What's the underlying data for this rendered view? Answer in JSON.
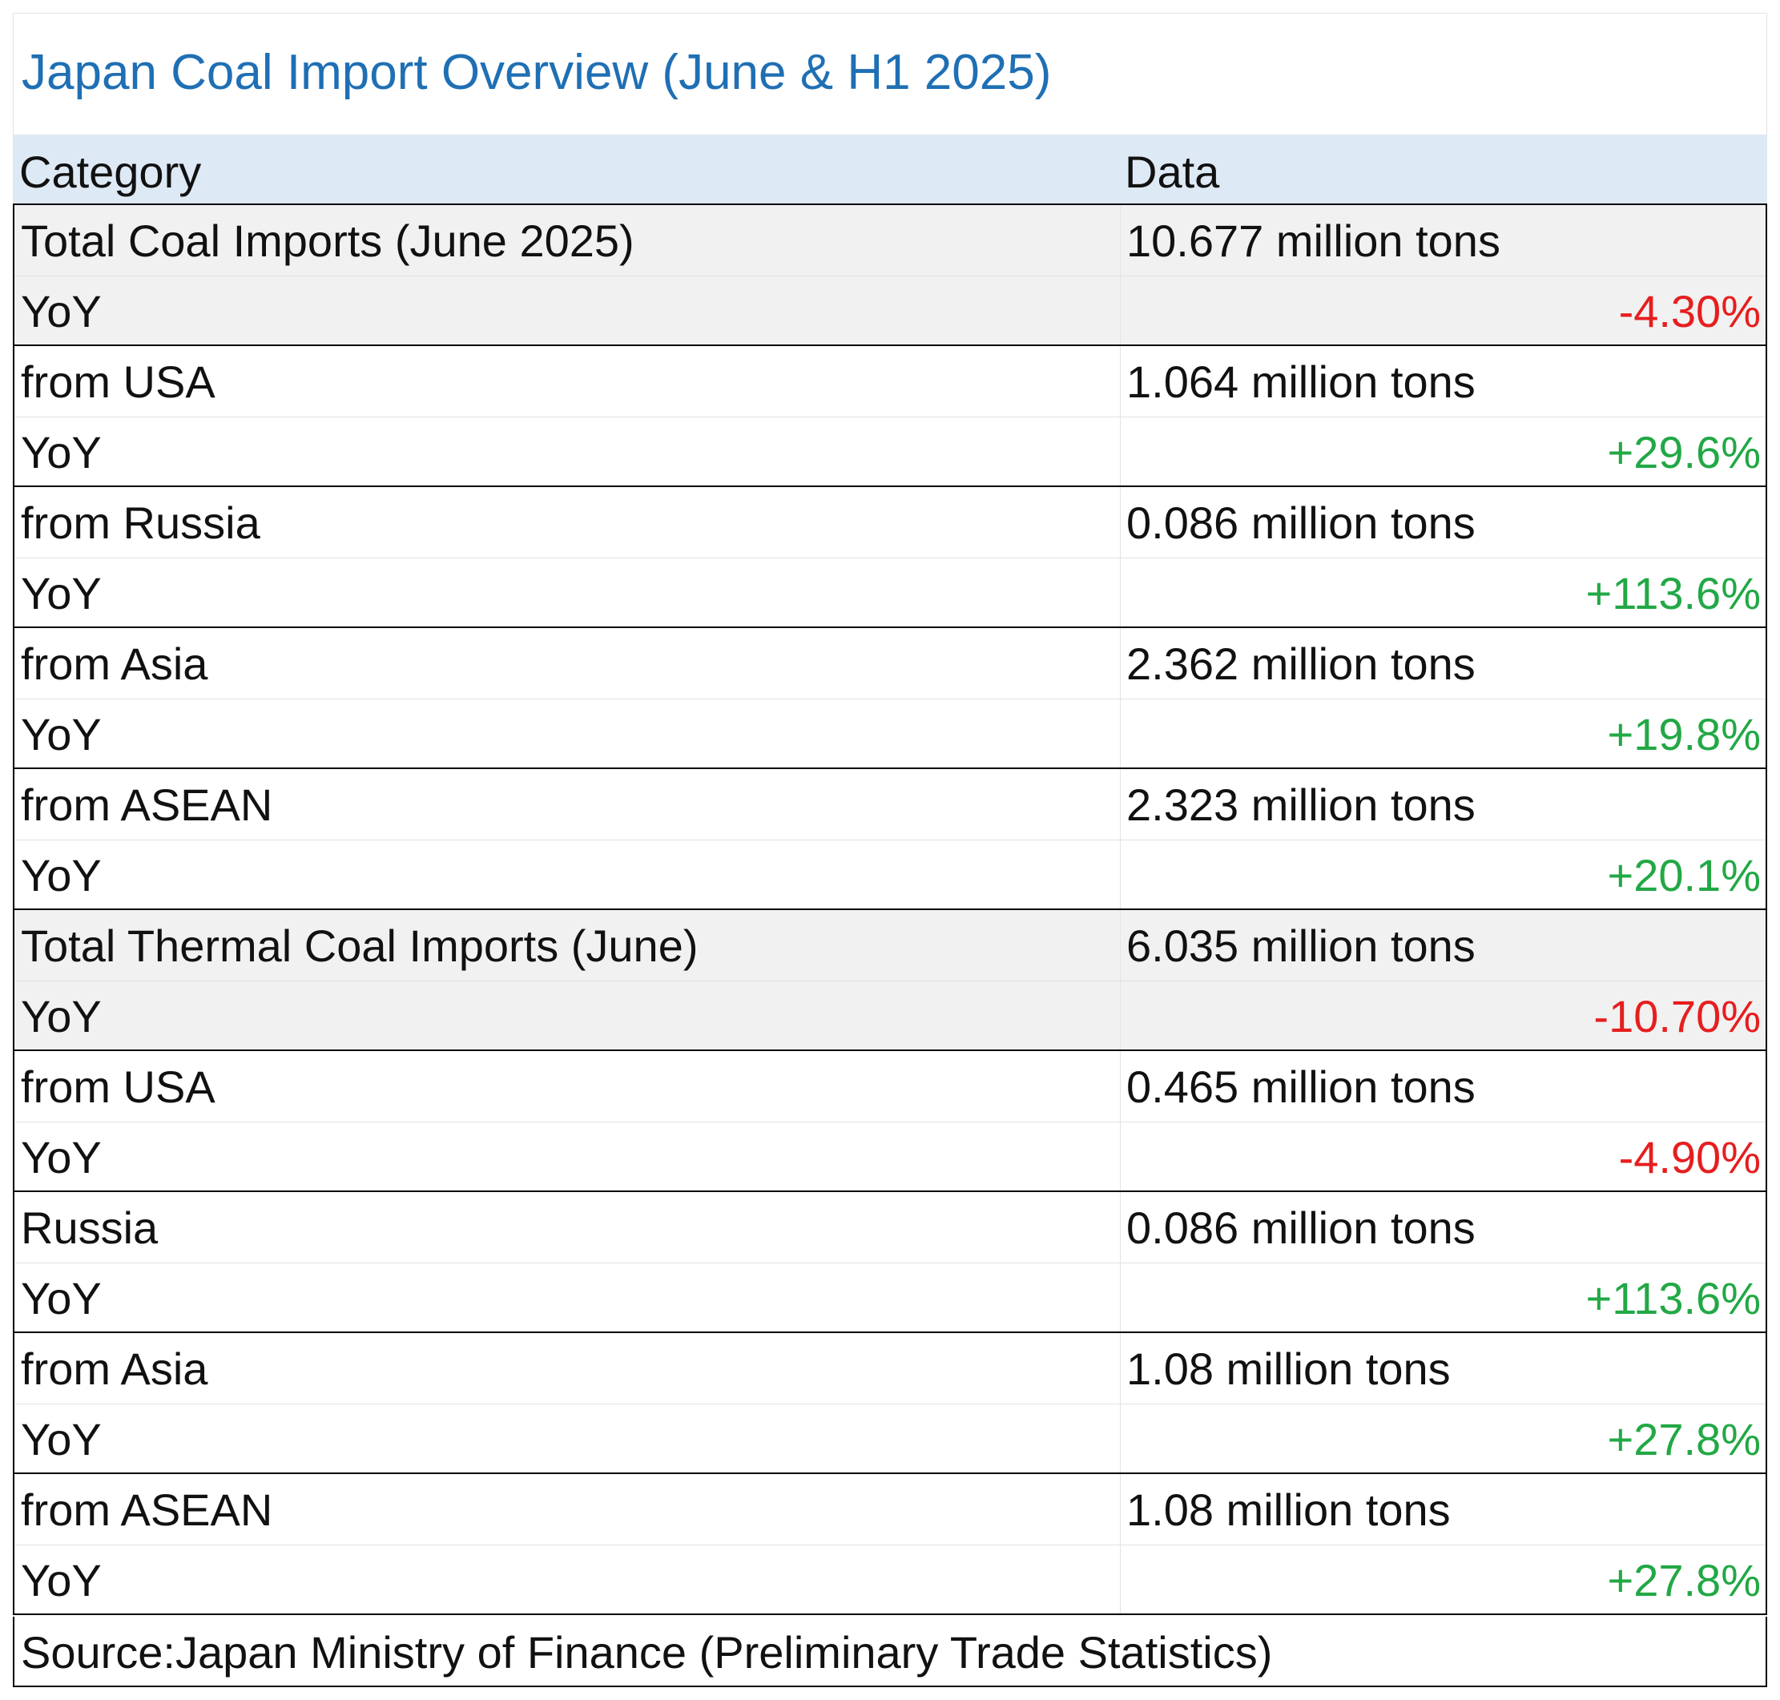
{
  "chart_data": {
    "type": "table",
    "title": "Japan Coal Import Overview (June & H1 2025)",
    "columns": [
      "Category",
      "Data"
    ],
    "rows": [
      {
        "category": "Total Coal Imports (June 2025)",
        "value": "10.677 million tons",
        "yoy_label": "YoY",
        "yoy": "-4.30%",
        "yoy_sign": "neg",
        "shaded": true
      },
      {
        "category": "from USA",
        "value": "1.064 million tons",
        "yoy_label": "YoY",
        "yoy": "+29.6%",
        "yoy_sign": "pos",
        "shaded": false
      },
      {
        "category": "from Russia",
        "value": "0.086 million tons",
        "yoy_label": "YoY",
        "yoy": "+113.6%",
        "yoy_sign": "pos",
        "shaded": false
      },
      {
        "category": "from Asia",
        "value": "2.362 million tons",
        "yoy_label": "YoY",
        "yoy": "+19.8%",
        "yoy_sign": "pos",
        "shaded": false
      },
      {
        "category": "from ASEAN",
        "value": "2.323 million tons",
        "yoy_label": "YoY",
        "yoy": "+20.1%",
        "yoy_sign": "pos",
        "shaded": false
      },
      {
        "category": "Total Thermal Coal Imports (June)",
        "value": "6.035 million tons",
        "yoy_label": "YoY",
        "yoy": "-10.70%",
        "yoy_sign": "neg",
        "shaded": true
      },
      {
        "category": "from USA",
        "value": "0.465 million tons",
        "yoy_label": "YoY",
        "yoy": "-4.90%",
        "yoy_sign": "neg",
        "shaded": false
      },
      {
        "category": "Russia",
        "value": "0.086 million tons",
        "yoy_label": "YoY",
        "yoy": "+113.6%",
        "yoy_sign": "pos",
        "shaded": false
      },
      {
        "category": "from Asia",
        "value": "1.08 million tons",
        "yoy_label": "YoY",
        "yoy": "+27.8%",
        "yoy_sign": "pos",
        "shaded": false
      },
      {
        "category": "from ASEAN",
        "value": "1.08 million tons",
        "yoy_label": "YoY",
        "yoy": "+27.8%",
        "yoy_sign": "pos",
        "shaded": false
      }
    ],
    "source": "Source:Japan Ministry of Finance (Preliminary Trade Statistics)",
    "colors": {
      "title": "#1f6fb4",
      "header_bg": "#dde9f4",
      "shaded_bg": "#f1f1f1",
      "negative": "#e61e1e",
      "positive": "#22a845"
    }
  }
}
